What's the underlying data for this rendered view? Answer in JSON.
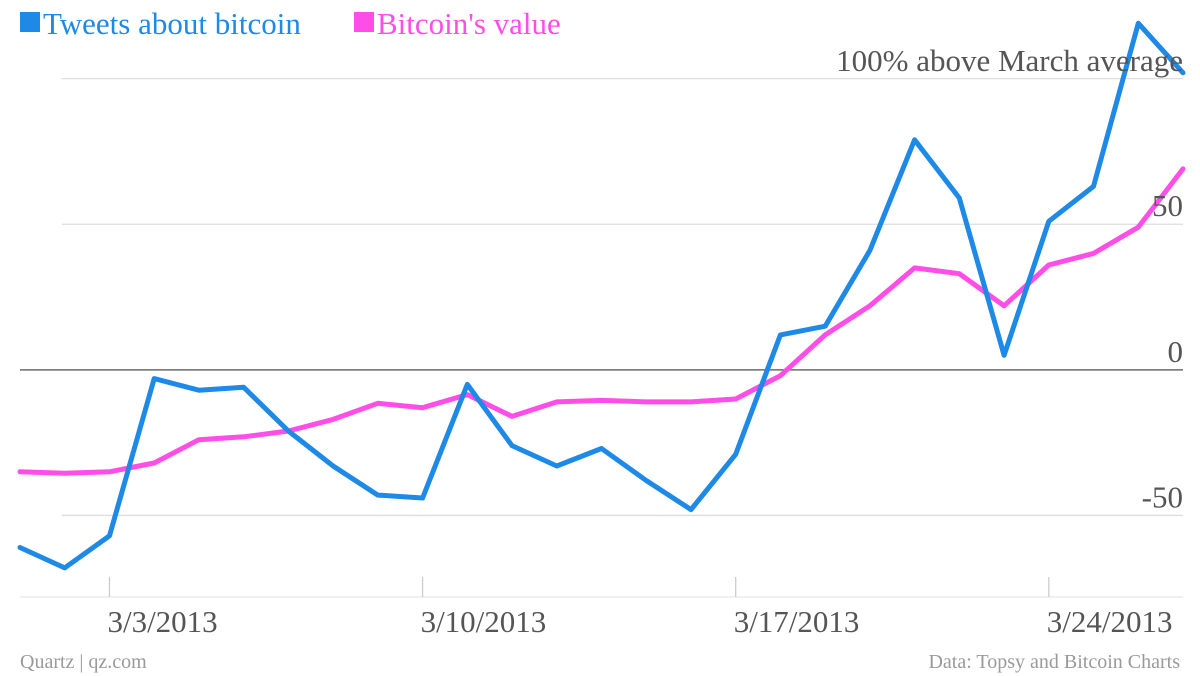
{
  "chart_data": {
    "type": "line",
    "annotation": "100% above March average",
    "x_dates": [
      "3/1/2013",
      "3/2/2013",
      "3/3/2013",
      "3/4/2013",
      "3/5/2013",
      "3/6/2013",
      "3/7/2013",
      "3/8/2013",
      "3/9/2013",
      "3/10/2013",
      "3/11/2013",
      "3/12/2013",
      "3/13/2013",
      "3/14/2013",
      "3/15/2013",
      "3/16/2013",
      "3/17/2013",
      "3/18/2013",
      "3/19/2013",
      "3/20/2013",
      "3/21/2013",
      "3/22/2013",
      "3/23/2013",
      "3/24/2013",
      "3/25/2013",
      "3/26/2013",
      "3/27/2013"
    ],
    "series": [
      {
        "name": "Tweets about bitcoin",
        "color": "#1e8ae6",
        "values": [
          -61,
          -68,
          -57,
          -3,
          -7,
          -6,
          -21,
          -33,
          -43,
          -44,
          -5,
          -26,
          -33,
          -27,
          -38,
          -48,
          -29,
          12,
          15,
          41,
          79,
          59,
          5,
          51,
          63,
          119,
          102
        ]
      },
      {
        "name": "Bitcoin's value",
        "color": "#ff4de8",
        "values": [
          -35,
          -35.5,
          -35,
          -32,
          -24,
          -23,
          -21,
          -17,
          -11.5,
          -13,
          -8.5,
          -16,
          -11,
          -10.5,
          -11,
          -11,
          -10,
          -2,
          12,
          22,
          35,
          33,
          22,
          36,
          40,
          49,
          69
        ]
      }
    ],
    "xtick_labels": [
      "3/3/2013",
      "3/10/2013",
      "3/17/2013",
      "3/24/2013"
    ],
    "ytick_labels": [
      "50",
      "0",
      "-50"
    ],
    "ytick_values": [
      50,
      0,
      -50
    ],
    "gridline_values": [
      100,
      50,
      0,
      -50
    ],
    "ylim": [
      -78,
      127
    ],
    "grid": true,
    "legend_position": "top-left",
    "source_left": "Quartz | qz.com",
    "source_right": "Data: Topsy and Bitcoin Charts"
  }
}
